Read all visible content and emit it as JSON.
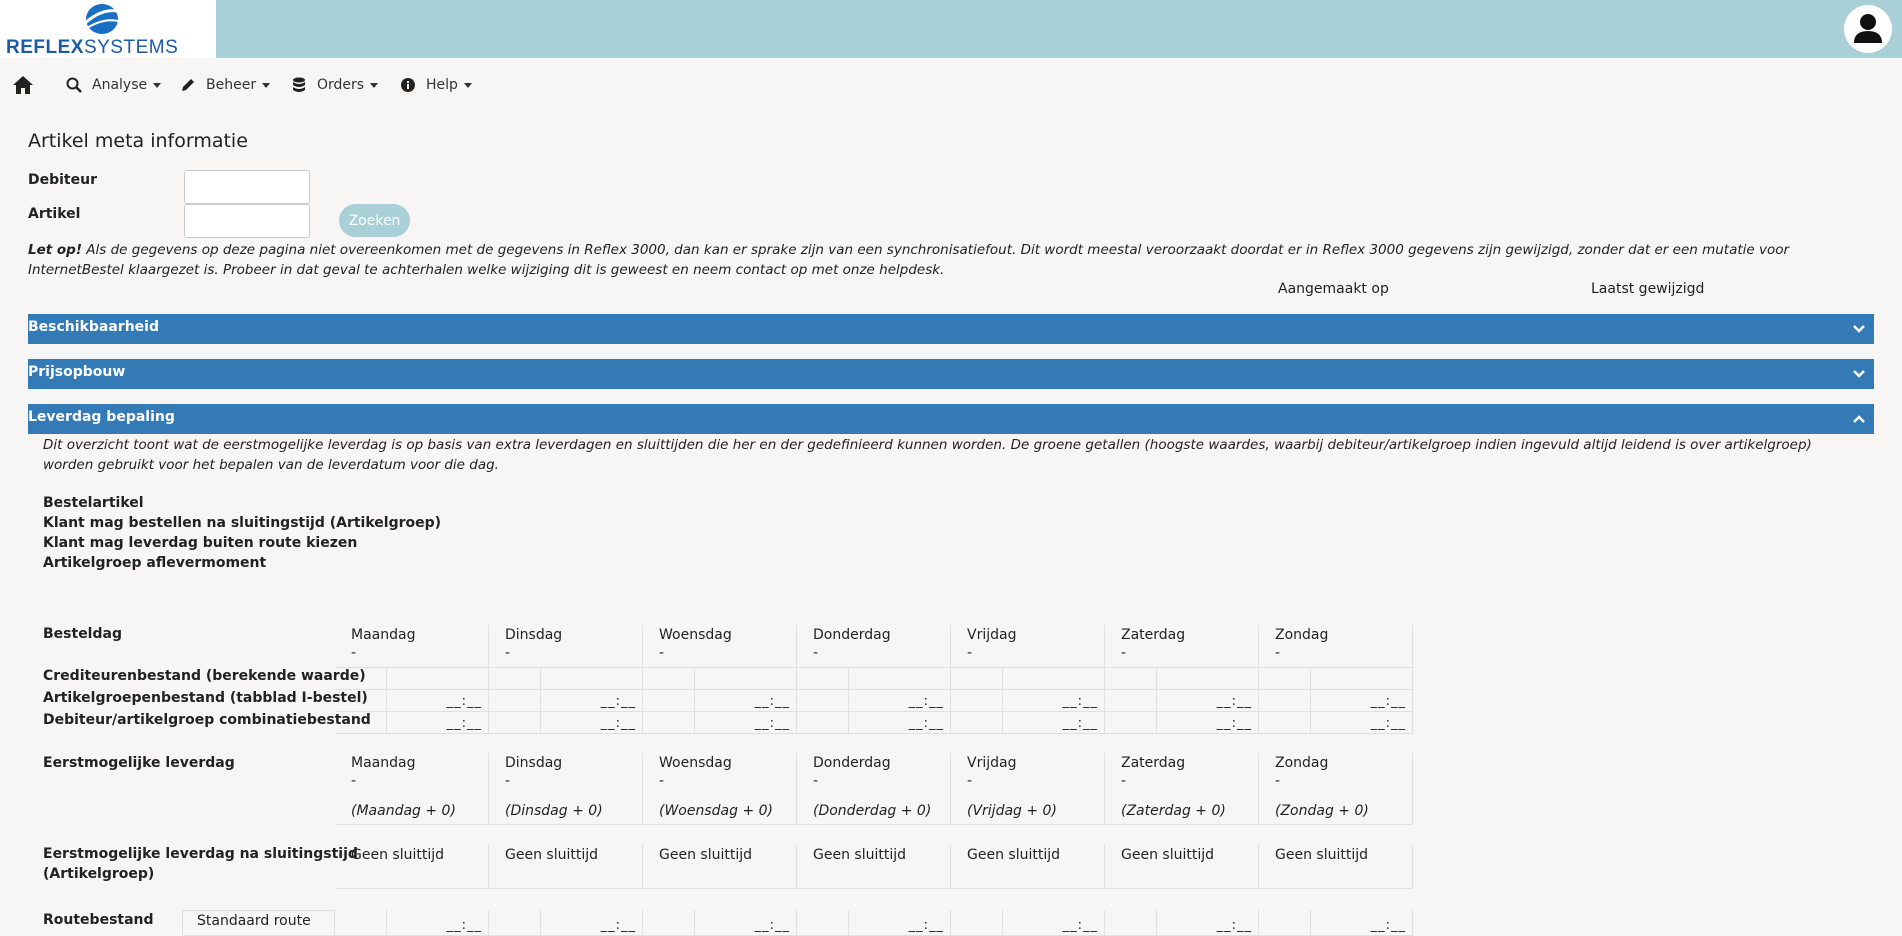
{
  "brand": {
    "logo_bold": "REFLEX",
    "logo_light": "SYSTEMS",
    "accent": "#337ab7",
    "banner": "#a9d0d6"
  },
  "nav": {
    "home_icon": "home-icon",
    "items": [
      {
        "label": "Analyse",
        "icon": "search-chart-icon"
      },
      {
        "label": "Beheer",
        "icon": "pencil-icon"
      },
      {
        "label": "Orders",
        "icon": "database-icon"
      },
      {
        "label": "Help",
        "icon": "info-icon"
      }
    ]
  },
  "page": {
    "title": "Artikel meta informatie"
  },
  "form": {
    "debiteur_label": "Debiteur",
    "artikel_label": "Artikel",
    "debiteur_value": "",
    "artikel_value": "",
    "search_label": "Zoeken"
  },
  "warning": {
    "bold": "Let op!",
    "text": " Als de gegevens op deze pagina niet overeenkomen met de gegevens in Reflex 3000, dan kan er sprake zijn van een synchronisatiefout. Dit wordt meestal veroorzaakt doordat er in Reflex 3000 gegevens zijn gewijzigd, zonder dat er een mutatie voor InternetBestel klaargezet is. Probeer in dat geval te achterhalen welke wijziging dit is geweest en neem contact op met onze helpdesk."
  },
  "meta": {
    "created": "Aangemaakt op",
    "modified": "Laatst gewijzigd"
  },
  "panels": {
    "beschikbaarheid": "Beschikbaarheid",
    "prijsopbouw": "Prijsopbouw",
    "leverdag": "Leverdag bepaling"
  },
  "leverdag": {
    "description": "Dit overzicht toont wat de eerstmogelijke leverdag is op basis van extra leverdagen en sluittijden die her en der gedefinieerd kunnen worden. De groene getallen (hoogste waardes, waarbij debiteur/artikelgroep indien ingevuld altijd leidend is over artikelgroep) worden gebruikt voor het bepalen van de leverdatum voor die dag.",
    "info_labels": [
      "Bestelartikel",
      "Klant mag bestellen na sluitingstijd (Artikelgroep)",
      "Klant mag leverdag buiten route kiezen",
      "Artikelgroep aflevermoment"
    ],
    "besteldag_label": "Besteldag",
    "row_labels": [
      "Crediteurenbestand (berekende waarde)",
      "Artikelgroepenbestand (tabblad I-bestel)",
      "Debiteur/artikelgroep combinatiebestand"
    ],
    "eerst_label": "Eerstmogelijke leverdag",
    "sluit_label_1": "Eerstmogelijke leverdag na sluitingstijd",
    "sluit_label_2": "(Artikelgroep)",
    "route_label": "Routebestand",
    "route_name": "Standaard route",
    "empty_time": "__:__",
    "dash": "-",
    "no_close": "Geen sluittijd",
    "days": [
      {
        "name": "Maandag",
        "offset": "(Maandag + 0)"
      },
      {
        "name": "Dinsdag",
        "offset": "(Dinsdag + 0)"
      },
      {
        "name": "Woensdag",
        "offset": "(Woensdag + 0)"
      },
      {
        "name": "Donderdag",
        "offset": "(Donderdag + 0)"
      },
      {
        "name": "Vrijdag",
        "offset": "(Vrijdag + 0)"
      },
      {
        "name": "Zaterdag",
        "offset": "(Zaterdag + 0)"
      },
      {
        "name": "Zondag",
        "offset": "(Zondag + 0)"
      }
    ]
  }
}
